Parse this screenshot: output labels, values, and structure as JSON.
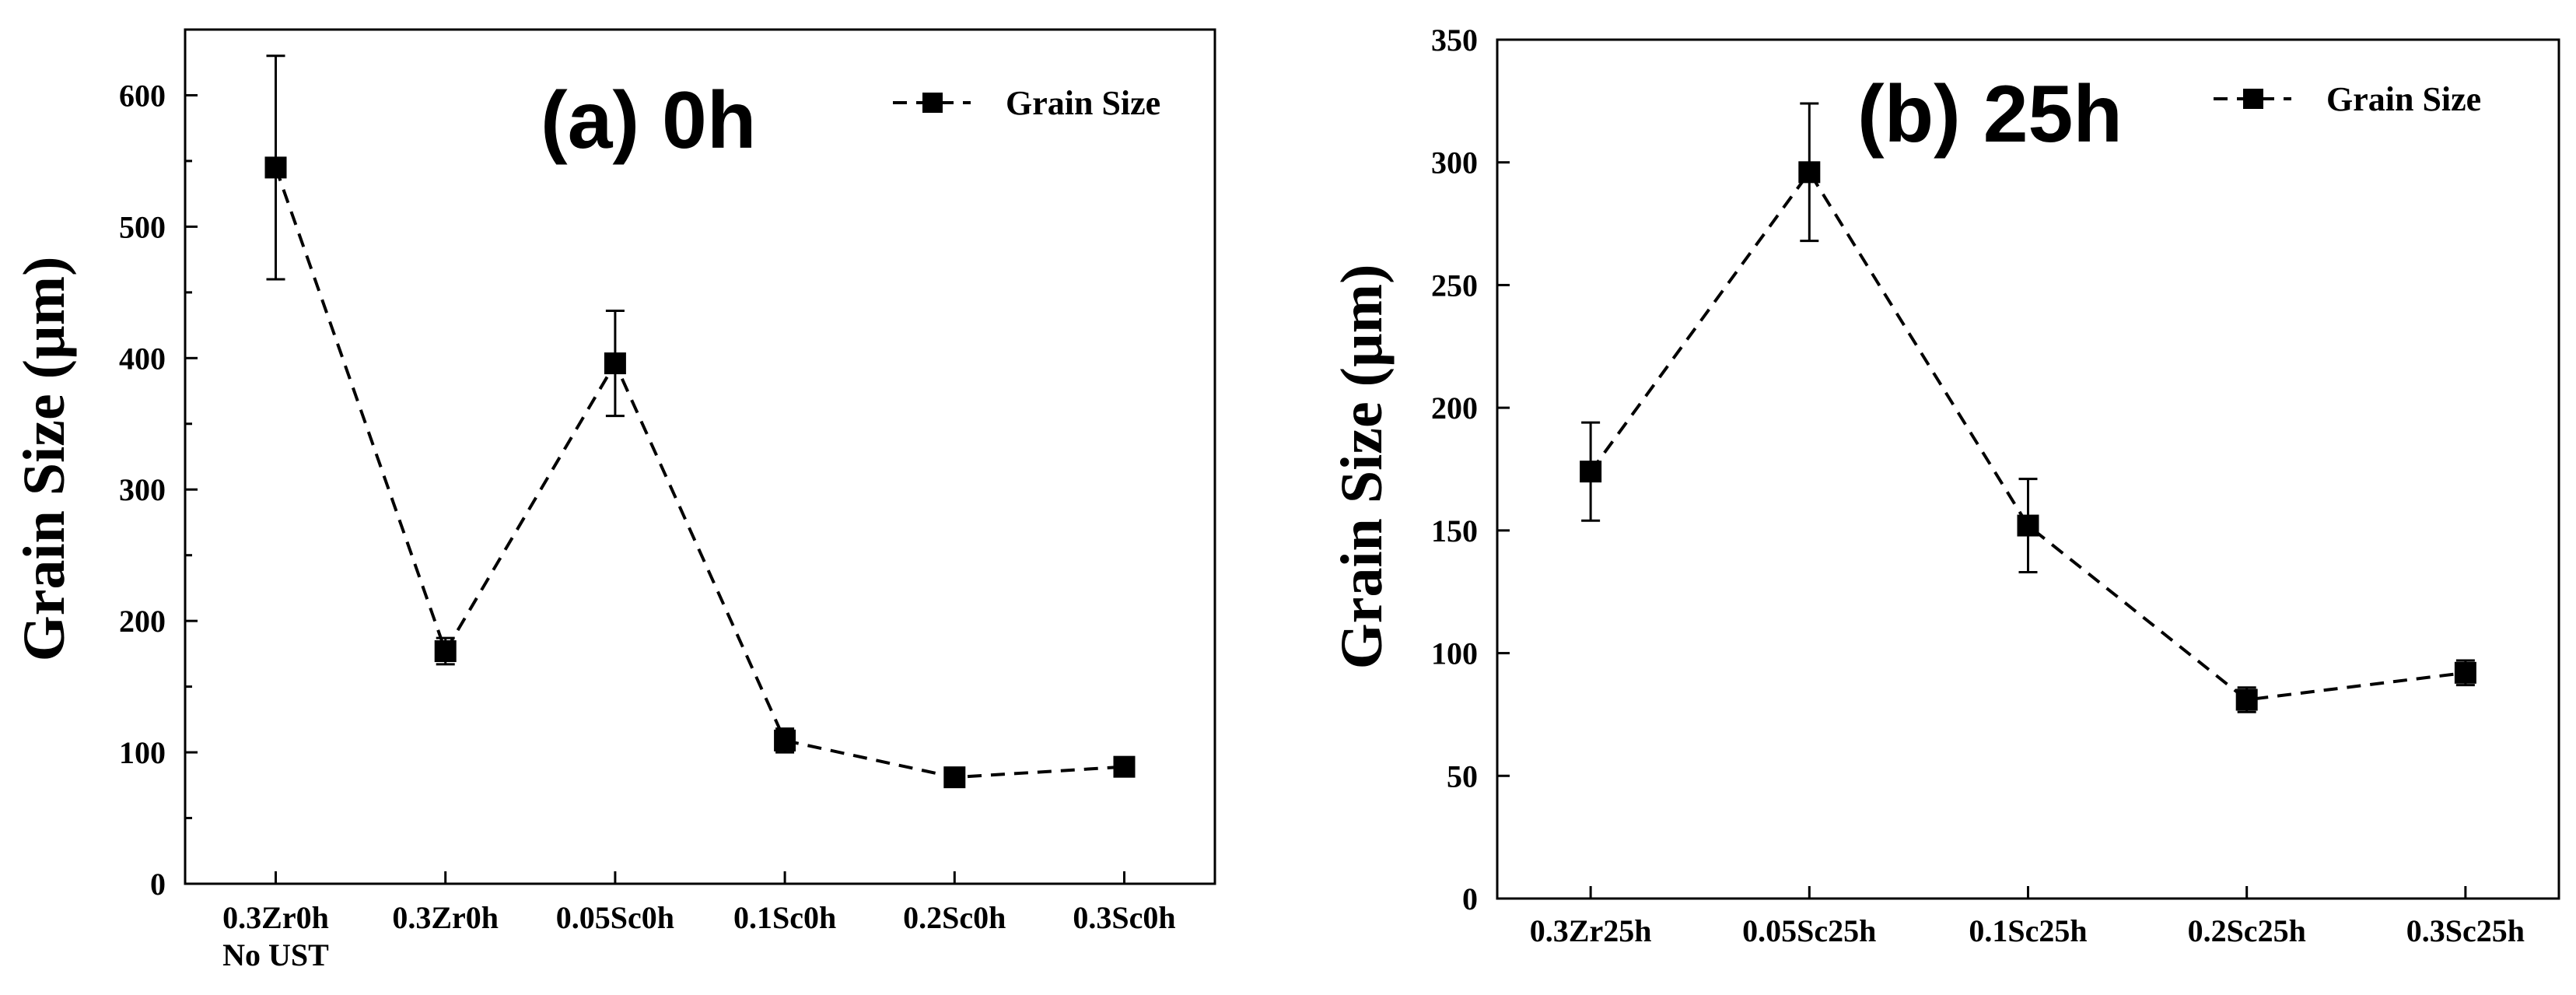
{
  "chart_data": [
    {
      "type": "line",
      "title": "(a) 0h",
      "ylabel": "Grain Size (µm)",
      "xlabel": "",
      "categories": [
        "0.3Zr0h\nNo UST",
        "0.3Zr0h",
        "0.05Sc0h",
        "0.1Sc0h",
        "0.2Sc0h",
        "0.3Sc0h"
      ],
      "yticks": [
        0,
        100,
        200,
        300,
        400,
        500,
        600
      ],
      "ylim": [
        0,
        650
      ],
      "grid": false,
      "legend": "top-right",
      "series": [
        {
          "name": "Grain Size",
          "values": [
            545,
            177,
            396,
            109,
            81,
            89
          ],
          "errors": [
            85,
            10,
            40,
            9,
            5,
            5
          ]
        }
      ]
    },
    {
      "type": "line",
      "title": "(b) 25h",
      "ylabel": "Grain Size (µm)",
      "xlabel": "",
      "categories": [
        "0.3Zr25h",
        "0.05Sc25h",
        "0.1Sc25h",
        "0.2Sc25h",
        "0.3Sc25h"
      ],
      "yticks": [
        0,
        50,
        100,
        150,
        200,
        250,
        300,
        350
      ],
      "ylim": [
        0,
        350
      ],
      "grid": false,
      "legend": "top-right",
      "series": [
        {
          "name": "Grain Size",
          "values": [
            174,
            296,
            152,
            81,
            92
          ],
          "errors": [
            20,
            28,
            19,
            5,
            5
          ]
        }
      ]
    }
  ]
}
